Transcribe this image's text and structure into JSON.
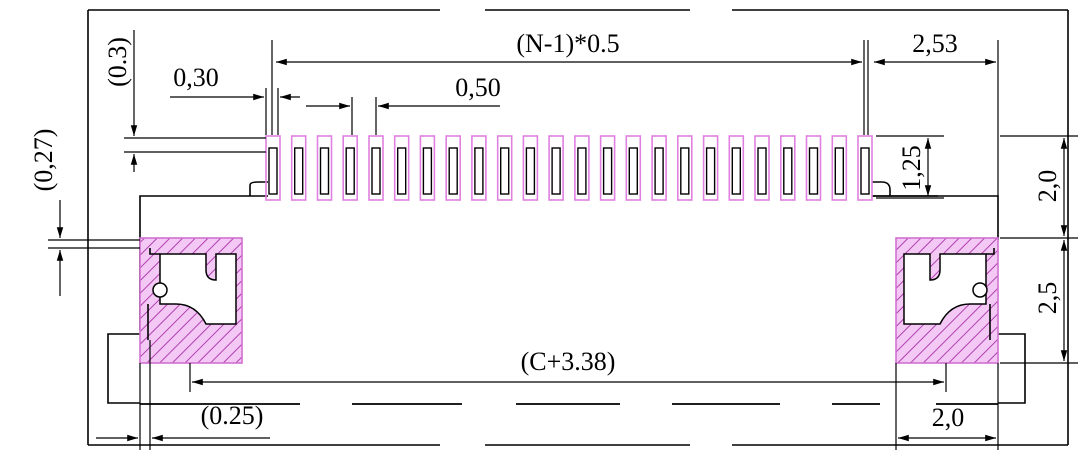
{
  "colors": {
    "line": "#000000",
    "pad_outline": "#e080e0",
    "hatch": "#b040b0",
    "hatch_bg": "#f4c8f4"
  },
  "pin_count_drawn": 24,
  "dimensions": {
    "pitch_total": "(N-1)*0.5",
    "side_offset": "2,53",
    "pad_width": "0,30",
    "pitch": "0,50",
    "top_ref": "(0.3)",
    "left_ref": "(0,27)",
    "pad_height": "1,25",
    "body_height": "2,0",
    "anchor_height": "2,5",
    "anchor_span": "(C+3.38)",
    "bottom_left_ref": "(0.25)",
    "anchor_width": "2,0"
  }
}
